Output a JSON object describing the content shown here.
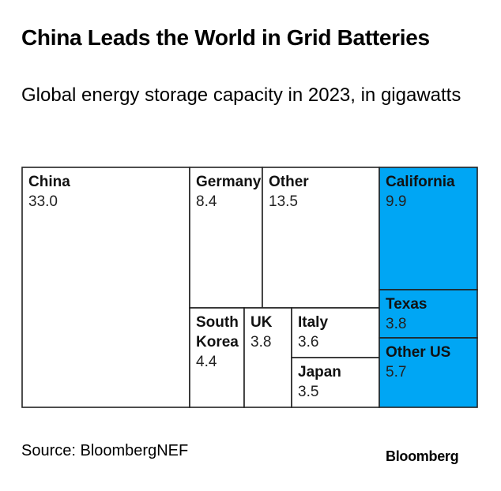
{
  "header": {
    "title": "China Leads the World in Grid Batteries",
    "subtitle": "Global energy storage capacity in 2023, in gigawatts"
  },
  "footer": {
    "source": "Source: BloombergNEF",
    "brand": "Bloomberg"
  },
  "colors": {
    "us_fill": "#00a6f4",
    "other_fill": "#ffffff",
    "border": "#222222"
  },
  "chart_data": {
    "type": "treemap",
    "title": "China Leads the World in Grid Batteries",
    "subtitle": "Global energy storage capacity in 2023, in gigawatts",
    "unit": "GW",
    "items": [
      {
        "label": "China",
        "label_lines": [
          "China"
        ],
        "value": 33.0,
        "display": "33.0",
        "group": "other"
      },
      {
        "label": "Germany",
        "label_lines": [
          "Germany"
        ],
        "value": 8.4,
        "display": "8.4",
        "group": "other"
      },
      {
        "label": "Other",
        "label_lines": [
          "Other"
        ],
        "value": 13.5,
        "display": "13.5",
        "group": "other"
      },
      {
        "label": "South Korea",
        "label_lines": [
          "South",
          "Korea"
        ],
        "value": 4.4,
        "display": "4.4",
        "group": "other"
      },
      {
        "label": "UK",
        "label_lines": [
          "UK"
        ],
        "value": 3.8,
        "display": "3.8",
        "group": "other"
      },
      {
        "label": "Italy",
        "label_lines": [
          "Italy"
        ],
        "value": 3.6,
        "display": "3.6",
        "group": "other"
      },
      {
        "label": "Japan",
        "label_lines": [
          "Japan"
        ],
        "value": 3.5,
        "display": "3.5",
        "group": "other"
      },
      {
        "label": "California",
        "label_lines": [
          "California"
        ],
        "value": 9.9,
        "display": "9.9",
        "group": "us"
      },
      {
        "label": "Texas",
        "label_lines": [
          "Texas"
        ],
        "value": 3.8,
        "display": "3.8",
        "group": "us"
      },
      {
        "label": "Other US",
        "label_lines": [
          "Other US"
        ],
        "value": 5.7,
        "display": "5.7",
        "group": "us"
      }
    ]
  }
}
